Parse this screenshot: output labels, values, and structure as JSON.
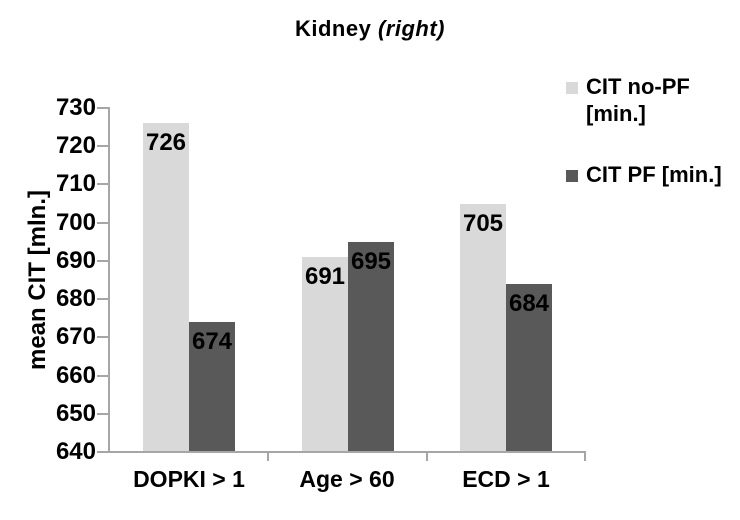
{
  "chart_data": {
    "type": "bar",
    "title": "Kidney (right)",
    "title_main": "Kidney",
    "title_note": "(right)",
    "ylabel": "mean CIT [mln.]",
    "categories": [
      "DOPKI > 1",
      "Age > 60",
      "ECD > 1"
    ],
    "series": [
      {
        "name": "CIT no-PF [min.]",
        "color": "#d9d9d9",
        "values": [
          726,
          691,
          705
        ]
      },
      {
        "name": "CIT PF [min.]",
        "color": "#595959",
        "values": [
          674,
          695,
          684
        ]
      }
    ],
    "ylim": [
      640,
      730
    ],
    "ytick_step": 10,
    "yticks": [
      640,
      650,
      660,
      670,
      680,
      690,
      700,
      710,
      720,
      730
    ],
    "grid": false,
    "legend_position": "right",
    "data_labels": "inside-top",
    "colors": {
      "axis": "#a6a6a6",
      "text": "#000000",
      "background": "#ffffff"
    }
  }
}
